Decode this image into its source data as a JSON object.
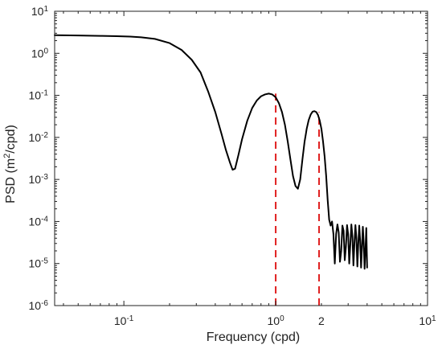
{
  "chart_data": {
    "type": "line",
    "title": "",
    "xlabel": "Frequency (cpd)",
    "ylabel": "PSD (m2/cpd)",
    "ylabel_parts": {
      "prefix": "PSD (m",
      "superscript": "2",
      "suffix": "/cpd)"
    },
    "x_scale": "log",
    "y_scale": "log",
    "xlim": [
      0.035,
      10
    ],
    "ylim": [
      1e-06,
      10
    ],
    "grid": false,
    "legend": "none",
    "x_ticks": [
      {
        "value": 0.1,
        "base": "10",
        "exp": "-1"
      },
      {
        "value": 1,
        "base": "10",
        "exp": "0"
      },
      {
        "value": 10,
        "base": "10",
        "exp": "1"
      }
    ],
    "x_extra_labels": [
      {
        "value": 2,
        "label": "2"
      }
    ],
    "y_ticks": [
      {
        "value": 1e-06,
        "base": "10",
        "exp": "-6"
      },
      {
        "value": 1e-05,
        "base": "10",
        "exp": "-5"
      },
      {
        "value": 0.0001,
        "base": "10",
        "exp": "-4"
      },
      {
        "value": 0.001,
        "base": "10",
        "exp": "-3"
      },
      {
        "value": 0.01,
        "base": "10",
        "exp": "-2"
      },
      {
        "value": 0.1,
        "base": "10",
        "exp": "-1"
      },
      {
        "value": 1,
        "base": "10",
        "exp": "0"
      },
      {
        "value": 10,
        "base": "10",
        "exp": "1"
      }
    ],
    "series": [
      {
        "color": "#000000",
        "x": [
          0.035,
          0.05,
          0.07,
          0.09,
          0.11,
          0.13,
          0.16,
          0.2,
          0.24,
          0.28,
          0.32,
          0.36,
          0.4,
          0.44,
          0.47,
          0.5,
          0.52,
          0.54,
          0.57,
          0.6,
          0.65,
          0.7,
          0.75,
          0.8,
          0.85,
          0.9,
          0.95,
          1.0,
          1.05,
          1.1,
          1.15,
          1.2,
          1.25,
          1.3,
          1.35,
          1.4,
          1.45,
          1.5,
          1.55,
          1.58,
          1.6,
          1.65,
          1.7,
          1.75,
          1.8,
          1.85,
          1.9,
          1.95,
          2.0,
          2.05,
          2.1,
          2.15,
          2.2,
          2.25,
          2.3,
          2.35,
          2.4,
          2.45,
          2.5,
          2.55,
          2.6,
          2.65,
          2.7,
          2.75,
          2.8,
          2.85,
          2.9,
          2.95,
          3.0,
          3.05,
          3.1,
          3.15,
          3.2,
          3.25,
          3.3,
          3.35,
          3.4,
          3.45,
          3.5,
          3.55,
          3.6,
          3.65,
          3.7,
          3.75,
          3.8,
          3.85,
          3.9,
          3.95,
          4.0
        ],
        "y": [
          2.7,
          2.65,
          2.6,
          2.55,
          2.5,
          2.4,
          2.2,
          1.75,
          1.2,
          0.7,
          0.35,
          0.12,
          0.04,
          0.012,
          0.005,
          0.0025,
          0.0017,
          0.0018,
          0.004,
          0.009,
          0.025,
          0.05,
          0.075,
          0.095,
          0.105,
          0.11,
          0.105,
          0.09,
          0.065,
          0.04,
          0.02,
          0.008,
          0.003,
          0.0012,
          0.0007,
          0.0006,
          0.001,
          0.003,
          0.008,
          0.012,
          0.016,
          0.026,
          0.035,
          0.041,
          0.042,
          0.04,
          0.034,
          0.025,
          0.016,
          0.008,
          0.0035,
          0.0012,
          0.00032,
          0.00011,
          8e-05,
          0.0001,
          5e-05,
          1e-05,
          5e-05,
          8.5e-05,
          5.5e-05,
          1.1e-05,
          2e-05,
          8e-05,
          6e-05,
          1.2e-05,
          2.5e-05,
          8.2e-05,
          5e-05,
          1e-05,
          2.8e-05,
          8.5e-05,
          4.5e-05,
          9e-06,
          3e-05,
          8.2e-05,
          4e-05,
          8.5e-06,
          3e-05,
          8e-05,
          3.5e-05,
          8e-06,
          2.5e-05,
          7.5e-05,
          3e-05,
          7.5e-06,
          2e-05,
          7e-05,
          8e-06
        ]
      }
    ],
    "reference_lines": [
      {
        "x": 1.0,
        "y_bottom": 1e-06,
        "y_top": 0.11,
        "color": "#e02020",
        "style": "dashed"
      },
      {
        "x": 1.93,
        "y_bottom": 1e-06,
        "y_top": 0.04,
        "color": "#e02020",
        "style": "dashed"
      }
    ]
  }
}
